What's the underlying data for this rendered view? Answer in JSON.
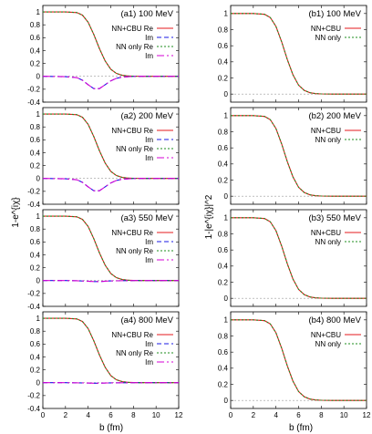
{
  "colors": {
    "nn_cbu_re": "#e41a1c",
    "im_cbu": "#1a1ae6",
    "nn_only_re": "#1e8c1e",
    "im_nn_only": "#d400d4",
    "zero_line": "#9a9a9a"
  },
  "chart_data": [
    {
      "type": "line",
      "panel": "a1",
      "title": "(a1) 100 MeV",
      "ylabel": "1-e^{iχ}",
      "xlabel": "",
      "xlim": [
        0,
        12
      ],
      "ylim": [
        -0.4,
        1.1
      ],
      "xticks": [
        0,
        2,
        4,
        6,
        8,
        10,
        12
      ],
      "yticks": [
        -0.4,
        -0.2,
        0,
        0.2,
        0.4,
        0.6,
        0.8,
        1
      ],
      "series": [
        {
          "name": "NN+CBU Re",
          "x": [
            0,
            2,
            3,
            3.5,
            4,
            4.5,
            5,
            5.5,
            6,
            6.5,
            7,
            7.5,
            8,
            9,
            10,
            12
          ],
          "y": [
            1,
            1,
            0.99,
            0.95,
            0.84,
            0.65,
            0.43,
            0.24,
            0.11,
            0.045,
            0.017,
            0.006,
            0.002,
            0,
            0,
            0
          ]
        },
        {
          "name": "Im",
          "x": [
            0,
            2,
            3,
            3.5,
            4,
            4.5,
            5,
            5.5,
            6,
            6.5,
            7,
            8,
            12
          ],
          "y": [
            0,
            -0.005,
            -0.02,
            -0.06,
            -0.13,
            -0.19,
            -0.19,
            -0.13,
            -0.07,
            -0.03,
            -0.012,
            0,
            0
          ]
        },
        {
          "name": "NN only Re",
          "x": [
            0,
            2,
            3,
            3.5,
            4,
            4.5,
            5,
            5.5,
            6,
            6.5,
            7,
            7.5,
            8,
            9,
            10,
            12
          ],
          "y": [
            1,
            1,
            0.99,
            0.95,
            0.84,
            0.65,
            0.43,
            0.24,
            0.11,
            0.045,
            0.017,
            0.006,
            0.002,
            0,
            0,
            0
          ]
        },
        {
          "name": "Im",
          "x": [
            0,
            2,
            3,
            3.5,
            4,
            4.5,
            5,
            5.5,
            6,
            6.5,
            7,
            8,
            12
          ],
          "y": [
            0,
            -0.005,
            -0.02,
            -0.06,
            -0.13,
            -0.19,
            -0.19,
            -0.13,
            -0.07,
            -0.03,
            -0.012,
            0,
            0
          ]
        }
      ]
    },
    {
      "type": "line",
      "panel": "a2",
      "title": "(a2) 200 MeV",
      "ylabel": "1-e^{iχ}",
      "xlabel": "",
      "xlim": [
        0,
        12
      ],
      "ylim": [
        -0.4,
        1.1
      ],
      "xticks": [
        0,
        2,
        4,
        6,
        8,
        10,
        12
      ],
      "yticks": [
        -0.4,
        -0.2,
        0,
        0.2,
        0.4,
        0.6,
        0.8,
        1
      ],
      "series": [
        {
          "name": "NN+CBU Re",
          "x": [
            0,
            2,
            3,
            3.5,
            4,
            4.5,
            5,
            5.5,
            6,
            6.5,
            7,
            7.5,
            8,
            9,
            10,
            12
          ],
          "y": [
            1,
            1,
            0.99,
            0.95,
            0.84,
            0.65,
            0.43,
            0.24,
            0.11,
            0.045,
            0.017,
            0.006,
            0.002,
            0,
            0,
            0
          ]
        },
        {
          "name": "Im",
          "x": [
            0,
            2,
            3,
            3.5,
            4,
            4.5,
            5,
            5.5,
            6,
            6.5,
            7,
            8,
            12
          ],
          "y": [
            0,
            -0.005,
            -0.02,
            -0.06,
            -0.13,
            -0.19,
            -0.19,
            -0.13,
            -0.07,
            -0.03,
            -0.012,
            0,
            0
          ]
        },
        {
          "name": "NN only Re",
          "x": [
            0,
            2,
            3,
            3.5,
            4,
            4.5,
            5,
            5.5,
            6,
            6.5,
            7,
            7.5,
            8,
            9,
            10,
            12
          ],
          "y": [
            1,
            1,
            0.99,
            0.95,
            0.84,
            0.65,
            0.43,
            0.24,
            0.11,
            0.045,
            0.017,
            0.006,
            0.002,
            0,
            0,
            0
          ]
        },
        {
          "name": "Im",
          "x": [
            0,
            2,
            3,
            3.5,
            4,
            4.5,
            5,
            5.5,
            6,
            6.5,
            7,
            8,
            12
          ],
          "y": [
            0,
            -0.005,
            -0.02,
            -0.06,
            -0.13,
            -0.19,
            -0.19,
            -0.13,
            -0.07,
            -0.03,
            -0.012,
            0,
            0
          ]
        }
      ]
    },
    {
      "type": "line",
      "panel": "a3",
      "title": "(a3) 550 MeV",
      "ylabel": "1-e^{iχ}",
      "xlabel": "",
      "xlim": [
        0,
        12
      ],
      "ylim": [
        -0.4,
        1.1
      ],
      "xticks": [
        0,
        2,
        4,
        6,
        8,
        10,
        12
      ],
      "yticks": [
        -0.4,
        -0.2,
        0,
        0.2,
        0.4,
        0.6,
        0.8,
        1
      ],
      "series": [
        {
          "name": "NN+CBU Re",
          "x": [
            0,
            2,
            3,
            3.5,
            4,
            4.5,
            5,
            5.5,
            6,
            6.5,
            7,
            7.5,
            8,
            9,
            10,
            12
          ],
          "y": [
            1,
            1,
            0.99,
            0.95,
            0.84,
            0.65,
            0.43,
            0.24,
            0.11,
            0.045,
            0.017,
            0.006,
            0.002,
            0,
            0,
            0
          ]
        },
        {
          "name": "Im",
          "x": [
            0,
            2,
            3,
            4,
            4.5,
            5,
            5.5,
            6,
            7,
            8,
            12
          ],
          "y": [
            0,
            0,
            -0.003,
            -0.01,
            -0.015,
            -0.015,
            -0.01,
            -0.005,
            -0.002,
            0,
            0
          ]
        },
        {
          "name": "NN only Re",
          "x": [
            0,
            2,
            3,
            3.5,
            4,
            4.5,
            5,
            5.5,
            6,
            6.5,
            7,
            7.5,
            8,
            9,
            10,
            12
          ],
          "y": [
            1,
            1,
            0.99,
            0.95,
            0.84,
            0.65,
            0.43,
            0.24,
            0.11,
            0.045,
            0.017,
            0.006,
            0.002,
            0,
            0,
            0
          ]
        },
        {
          "name": "Im",
          "x": [
            0,
            2,
            3,
            4,
            4.5,
            5,
            5.5,
            6,
            7,
            8,
            12
          ],
          "y": [
            0,
            0,
            -0.003,
            -0.01,
            -0.015,
            -0.015,
            -0.01,
            -0.005,
            -0.002,
            0,
            0
          ]
        }
      ]
    },
    {
      "type": "line",
      "panel": "a4",
      "title": "(a4) 800 MeV",
      "ylabel": "1-e^{iχ}",
      "xlabel": "b (fm)",
      "xlim": [
        0,
        12
      ],
      "ylim": [
        -0.4,
        1.1
      ],
      "xticks": [
        0,
        2,
        4,
        6,
        8,
        10,
        12
      ],
      "yticks": [
        -0.4,
        -0.2,
        0,
        0.2,
        0.4,
        0.6,
        0.8,
        1
      ],
      "series": [
        {
          "name": "NN+CBU Re",
          "x": [
            0,
            2,
            3,
            3.5,
            4,
            4.5,
            5,
            5.5,
            6,
            6.5,
            7,
            7.5,
            8,
            9,
            10,
            12
          ],
          "y": [
            1,
            1,
            0.99,
            0.95,
            0.84,
            0.65,
            0.43,
            0.24,
            0.11,
            0.045,
            0.017,
            0.006,
            0.002,
            0,
            0,
            0
          ]
        },
        {
          "name": "Im",
          "x": [
            0,
            2,
            3,
            4,
            4.5,
            5,
            5.5,
            6,
            7,
            8,
            12
          ],
          "y": [
            0,
            0,
            -0.002,
            -0.005,
            -0.008,
            -0.008,
            -0.005,
            -0.003,
            -0.001,
            0,
            0
          ]
        },
        {
          "name": "NN only Re",
          "x": [
            0,
            2,
            3,
            3.5,
            4,
            4.5,
            5,
            5.5,
            6,
            6.5,
            7,
            7.5,
            8,
            9,
            10,
            12
          ],
          "y": [
            1,
            1,
            0.99,
            0.95,
            0.84,
            0.65,
            0.43,
            0.24,
            0.11,
            0.045,
            0.017,
            0.006,
            0.002,
            0,
            0,
            0
          ]
        },
        {
          "name": "Im",
          "x": [
            0,
            2,
            3,
            4,
            4.5,
            5,
            5.5,
            6,
            7,
            8,
            12
          ],
          "y": [
            0,
            0,
            -0.002,
            -0.005,
            -0.008,
            -0.008,
            -0.005,
            -0.003,
            -0.001,
            0,
            0
          ]
        }
      ]
    },
    {
      "type": "line",
      "panel": "b1",
      "title": "(b1) 100 MeV",
      "ylabel": "1-|e^{iχ}|^2",
      "xlabel": "",
      "xlim": [
        0,
        12
      ],
      "ylim": [
        -0.1,
        1.1
      ],
      "xticks": [
        0,
        2,
        4,
        6,
        8,
        10,
        12
      ],
      "yticks": [
        0,
        0.2,
        0.4,
        0.6,
        0.8,
        1
      ],
      "series": [
        {
          "name": "NN+CBU",
          "x": [
            0,
            2,
            3,
            3.5,
            4,
            4.5,
            5,
            5.5,
            6,
            6.5,
            7,
            7.5,
            8,
            9,
            10,
            12
          ],
          "y": [
            1,
            1,
            0.99,
            0.95,
            0.84,
            0.65,
            0.43,
            0.24,
            0.11,
            0.045,
            0.017,
            0.006,
            0.002,
            0,
            0,
            0
          ]
        },
        {
          "name": "NN only",
          "x": [
            0,
            2,
            3,
            3.5,
            4,
            4.5,
            5,
            5.5,
            6,
            6.5,
            7,
            7.5,
            8,
            9,
            10,
            12
          ],
          "y": [
            1,
            1,
            0.99,
            0.95,
            0.84,
            0.65,
            0.43,
            0.24,
            0.11,
            0.045,
            0.017,
            0.006,
            0.002,
            0,
            0,
            0
          ]
        }
      ]
    },
    {
      "type": "line",
      "panel": "b2",
      "title": "(b2) 200 MeV",
      "ylabel": "1-|e^{iχ}|^2",
      "xlabel": "",
      "xlim": [
        0,
        12
      ],
      "ylim": [
        -0.1,
        1.1
      ],
      "xticks": [
        0,
        2,
        4,
        6,
        8,
        10,
        12
      ],
      "yticks": [
        0,
        0.2,
        0.4,
        0.6,
        0.8,
        1
      ],
      "series": [
        {
          "name": "NN+CBU",
          "x": [
            0,
            2,
            3,
            3.5,
            4,
            4.5,
            5,
            5.5,
            6,
            6.5,
            7,
            7.5,
            8,
            9,
            10,
            12
          ],
          "y": [
            1,
            1,
            0.99,
            0.95,
            0.84,
            0.65,
            0.43,
            0.24,
            0.11,
            0.045,
            0.017,
            0.006,
            0.002,
            0,
            0,
            0
          ]
        },
        {
          "name": "NN only",
          "x": [
            0,
            2,
            3,
            3.5,
            4,
            4.5,
            5,
            5.5,
            6,
            6.5,
            7,
            7.5,
            8,
            9,
            10,
            12
          ],
          "y": [
            1,
            1,
            0.99,
            0.95,
            0.84,
            0.65,
            0.43,
            0.24,
            0.11,
            0.045,
            0.017,
            0.006,
            0.002,
            0,
            0,
            0
          ]
        }
      ]
    },
    {
      "type": "line",
      "panel": "b3",
      "title": "(b3) 550 MeV",
      "ylabel": "1-|e^{iχ}|^2",
      "xlabel": "",
      "xlim": [
        0,
        12
      ],
      "ylim": [
        -0.1,
        1.1
      ],
      "xticks": [
        0,
        2,
        4,
        6,
        8,
        10,
        12
      ],
      "yticks": [
        0,
        0.2,
        0.4,
        0.6,
        0.8,
        1
      ],
      "series": [
        {
          "name": "NN+CBU",
          "x": [
            0,
            2,
            3,
            3.5,
            4,
            4.5,
            5,
            5.5,
            6,
            6.5,
            7,
            7.5,
            8,
            9,
            10,
            12
          ],
          "y": [
            1,
            1,
            0.99,
            0.95,
            0.84,
            0.65,
            0.43,
            0.24,
            0.11,
            0.045,
            0.017,
            0.006,
            0.002,
            0,
            0,
            0
          ]
        },
        {
          "name": "NN only",
          "x": [
            0,
            2,
            3,
            3.5,
            4,
            4.5,
            5,
            5.5,
            6,
            6.5,
            7,
            7.5,
            8,
            9,
            10,
            12
          ],
          "y": [
            1,
            1,
            0.99,
            0.95,
            0.84,
            0.65,
            0.43,
            0.24,
            0.11,
            0.045,
            0.017,
            0.006,
            0.002,
            0,
            0,
            0
          ]
        }
      ]
    },
    {
      "type": "line",
      "panel": "b4",
      "title": "(b4) 800 MeV",
      "ylabel": "1-|e^{iχ}|^2",
      "xlabel": "b (fm)",
      "xlim": [
        0,
        12
      ],
      "ylim": [
        -0.1,
        1.1
      ],
      "xticks": [
        0,
        2,
        4,
        6,
        8,
        10,
        12
      ],
      "yticks": [
        0,
        0.2,
        0.4,
        0.6,
        0.8,
        1
      ],
      "series": [
        {
          "name": "NN+CBU",
          "x": [
            0,
            2,
            3,
            3.5,
            4,
            4.5,
            5,
            5.5,
            6,
            6.5,
            7,
            7.5,
            8,
            9,
            10,
            12
          ],
          "y": [
            1,
            1,
            0.99,
            0.95,
            0.84,
            0.65,
            0.43,
            0.24,
            0.11,
            0.045,
            0.017,
            0.006,
            0.002,
            0,
            0,
            0
          ]
        },
        {
          "name": "NN only",
          "x": [
            0,
            2,
            3,
            3.5,
            4,
            4.5,
            5,
            5.5,
            6,
            6.5,
            7,
            7.5,
            8,
            9,
            10,
            12
          ],
          "y": [
            1,
            1,
            0.99,
            0.95,
            0.84,
            0.65,
            0.43,
            0.24,
            0.11,
            0.045,
            0.017,
            0.006,
            0.002,
            0,
            0,
            0
          ]
        }
      ]
    }
  ]
}
